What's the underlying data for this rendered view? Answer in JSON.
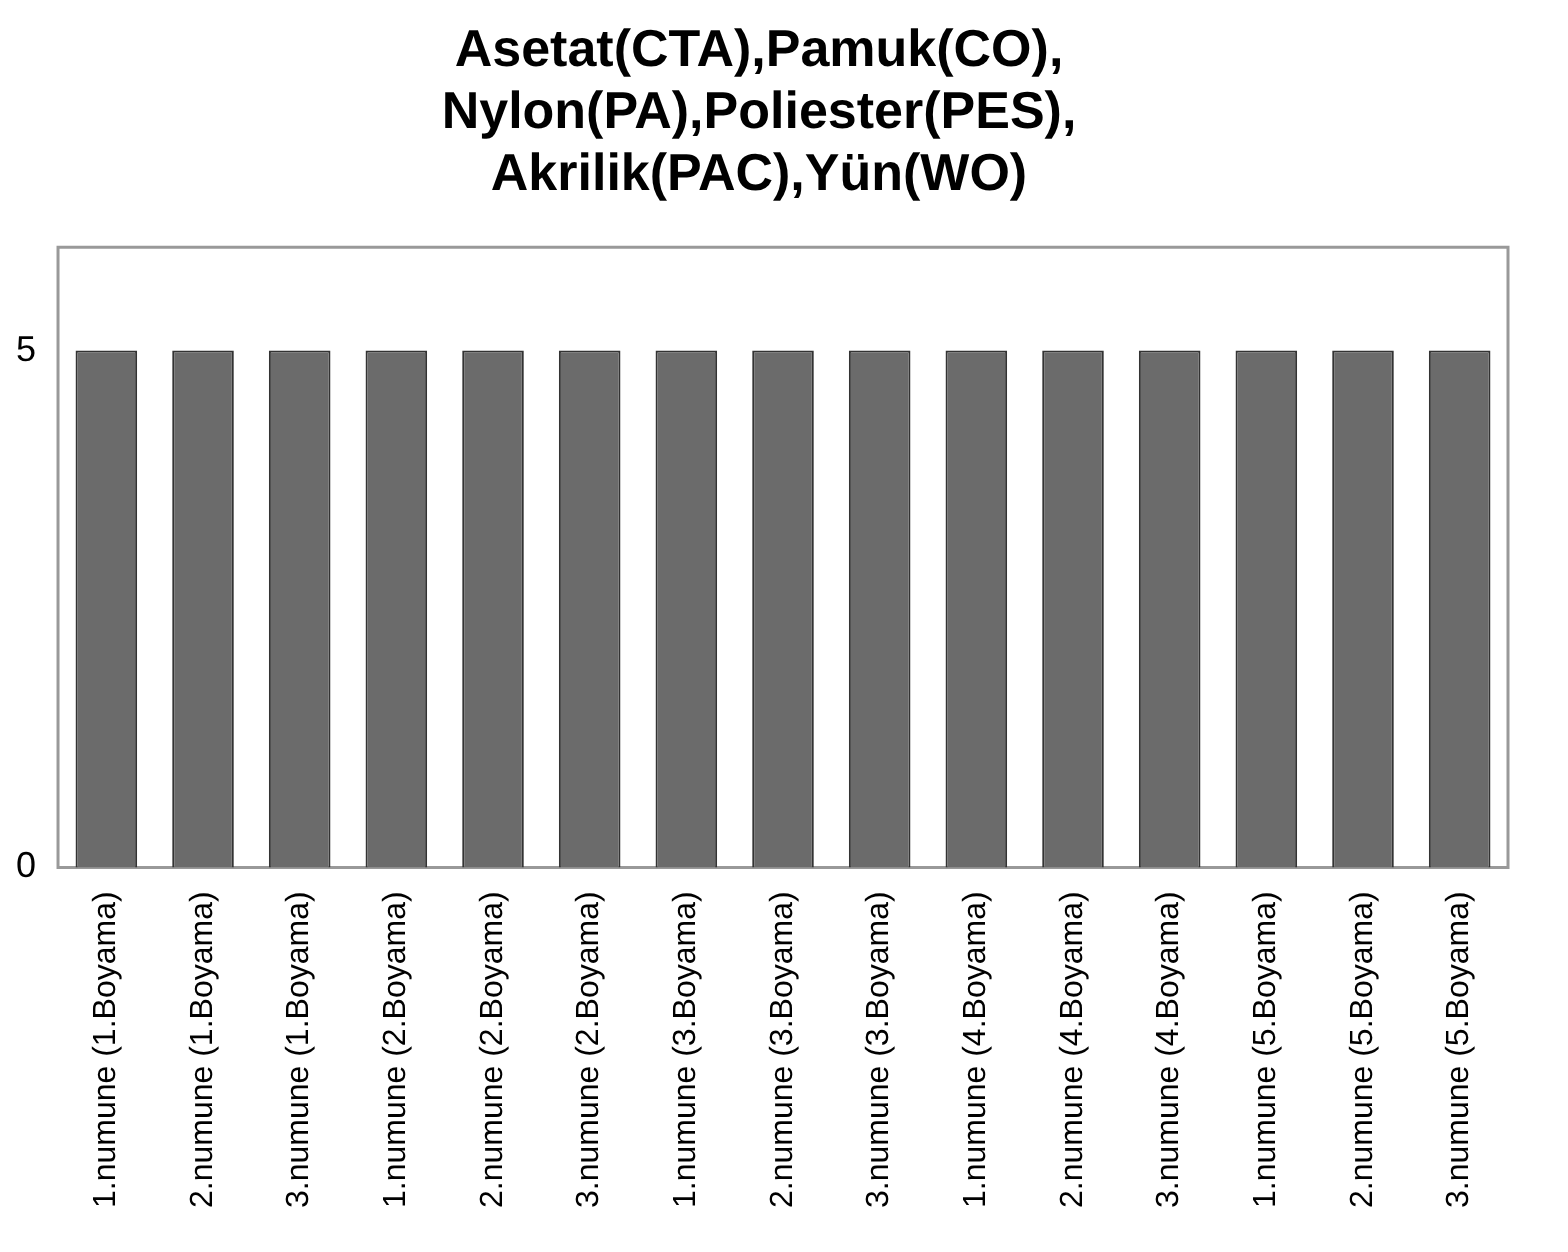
{
  "chart_data": {
    "type": "bar",
    "title": "Asetat(CTA),Pamuk(CO),\nNylon(PA),Poliester(PES),\nAkrilik(PAC),Yün(WO)",
    "categories": [
      "1.numune (1.Boyama)",
      "2.numune (1.Boyama)",
      "3.numune (1.Boyama)",
      "1.numune (2.Boyama)",
      "2.numune (2.Boyama)",
      "3.numune (2.Boyama)",
      "1.numune (3.Boyama)",
      "2.numune (3.Boyama)",
      "3.numune (3.Boyama)",
      "1.numune (4.Boyama)",
      "2.numune (4.Boyama)",
      "3.numune (4.Boyama)",
      "1.numune (5.Boyama)",
      "2.numune (5.Boyama)",
      "3.numune (5.Boyama)"
    ],
    "values": [
      5,
      5,
      5,
      5,
      5,
      5,
      5,
      5,
      5,
      5,
      5,
      5,
      5,
      5,
      5
    ],
    "color": "#6b6b6b",
    "ylim": [
      0,
      6
    ],
    "yticks": [
      0,
      5
    ],
    "grid": false,
    "legend": false
  }
}
